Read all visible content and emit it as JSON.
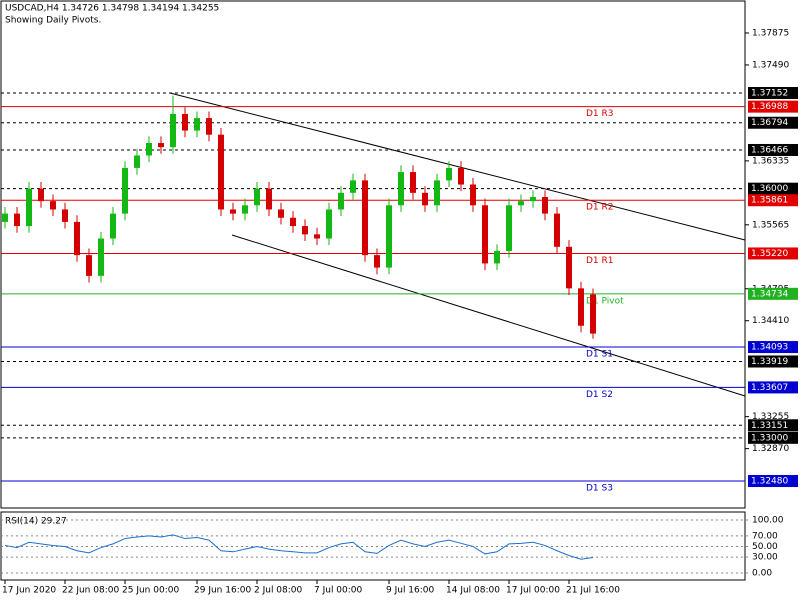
{
  "chart_data": {
    "type": "candlestick",
    "title": "USDCAD,H4  1.34726 1.34798 1.34194 1.34255",
    "subtitle": "Showing Daily Pivots.",
    "categories": [
      "17 Jun 2020",
      null,
      null,
      null,
      null,
      "22 Jun 08:00",
      null,
      null,
      null,
      null,
      "25 Jun 00:00",
      null,
      null,
      null,
      null,
      null,
      "29 Jun 16:00",
      null,
      null,
      null,
      null,
      "2 Jul 08:00",
      null,
      null,
      null,
      null,
      "7 Jul 00:00",
      null,
      null,
      null,
      null,
      null,
      "9 Jul 16:00",
      null,
      null,
      null,
      null,
      "14 Jul 08:00",
      null,
      null,
      null,
      null,
      "17 Jul 00:00",
      null,
      null,
      null,
      null,
      "21 Jul 16:00",
      null,
      null
    ],
    "open": [
      1.356,
      1.357,
      1.3555,
      1.36,
      1.3585,
      1.3575,
      1.356,
      1.352,
      1.3495,
      1.354,
      1.357,
      1.3625,
      1.364,
      1.3655,
      1.365,
      1.369,
      1.367,
      1.3685,
      1.3665,
      1.3575,
      1.357,
      1.358,
      1.36,
      1.3575,
      1.3565,
      1.3555,
      1.3545,
      1.354,
      1.3575,
      1.3595,
      1.361,
      1.352,
      1.3505,
      1.358,
      1.362,
      1.3595,
      1.358,
      1.361,
      1.3625,
      1.3605,
      1.358,
      1.351,
      1.3525,
      1.358,
      1.3585,
      1.359,
      1.357,
      1.353,
      1.348,
      1.34726
    ],
    "high": [
      1.3578,
      1.3578,
      1.3608,
      1.3608,
      1.3593,
      1.3583,
      1.3568,
      1.3528,
      1.3548,
      1.3578,
      1.3633,
      1.3648,
      1.3663,
      1.3663,
      1.3712,
      1.3698,
      1.3693,
      1.3693,
      1.3673,
      1.3583,
      1.3588,
      1.3608,
      1.3608,
      1.3583,
      1.3573,
      1.3563,
      1.3553,
      1.3583,
      1.3603,
      1.3618,
      1.3618,
      1.3528,
      1.3588,
      1.3628,
      1.3628,
      1.3603,
      1.3618,
      1.3633,
      1.3633,
      1.3613,
      1.3588,
      1.3533,
      1.3588,
      1.3593,
      1.3598,
      1.3598,
      1.3578,
      1.3538,
      1.3488,
      1.34798
    ],
    "low": [
      1.3552,
      1.3547,
      1.3547,
      1.3577,
      1.3567,
      1.3552,
      1.3512,
      1.3487,
      1.3487,
      1.3532,
      1.3562,
      1.3617,
      1.3632,
      1.3642,
      1.3642,
      1.3662,
      1.3662,
      1.3657,
      1.3567,
      1.3562,
      1.3562,
      1.3572,
      1.3567,
      1.3557,
      1.3547,
      1.3537,
      1.3532,
      1.3532,
      1.3567,
      1.3587,
      1.3512,
      1.3497,
      1.3497,
      1.3572,
      1.3587,
      1.3572,
      1.3572,
      1.3602,
      1.3597,
      1.3572,
      1.3502,
      1.3502,
      1.3517,
      1.3572,
      1.3577,
      1.3562,
      1.3522,
      1.3472,
      1.3427,
      1.34194
    ],
    "close": [
      1.357,
      1.3555,
      1.36,
      1.3585,
      1.3575,
      1.356,
      1.352,
      1.3495,
      1.354,
      1.357,
      1.3625,
      1.364,
      1.3655,
      1.365,
      1.369,
      1.367,
      1.3685,
      1.3665,
      1.3575,
      1.357,
      1.358,
      1.36,
      1.3575,
      1.3565,
      1.3555,
      1.3545,
      1.354,
      1.3575,
      1.3595,
      1.361,
      1.352,
      1.3505,
      1.358,
      1.362,
      1.3595,
      1.358,
      1.361,
      1.3625,
      1.3605,
      1.358,
      1.351,
      1.3525,
      1.358,
      1.3585,
      1.359,
      1.357,
      1.353,
      1.348,
      1.3435,
      1.34255
    ],
    "up_color": "#14b814",
    "down_color": "#d40000",
    "ylim": [
      1.32155,
      1.38272
    ],
    "yticks": [
      {
        "value": 1.37875,
        "label": "1.37875"
      },
      {
        "value": 1.3749,
        "label": "1.37490"
      },
      {
        "value": 1.36335,
        "label": "1.36335"
      },
      {
        "value": 1.35565,
        "label": "1.35565"
      },
      {
        "value": 1.34795,
        "label": "1.34795"
      },
      {
        "value": 1.3441,
        "label": "1.34410"
      },
      {
        "value": 1.33255,
        "label": "1.33255"
      },
      {
        "value": 1.3287,
        "label": "1.32870"
      }
    ],
    "levels": [
      {
        "price": {
          "value": 1.37152,
          "label": "1.37152"
        },
        "color": "#000000",
        "style": "dashed"
      },
      {
        "price": {
          "value": 1.36988,
          "label": "1.36988"
        },
        "color": "#e00000",
        "style": "solid",
        "name": "D1  R3"
      },
      {
        "price": {
          "value": 1.36794,
          "label": "1.36794"
        },
        "color": "#000000",
        "style": "dashed"
      },
      {
        "price": {
          "value": 1.36466,
          "label": "1.36466"
        },
        "color": "#000000",
        "style": "dashed"
      },
      {
        "price": {
          "value": 1.36,
          "label": "1.36000"
        },
        "color": "#000000",
        "style": "dashed"
      },
      {
        "price": {
          "value": 1.35861,
          "label": "1.35861"
        },
        "color": "#e00000",
        "style": "solid",
        "name": "D1  R2"
      },
      {
        "price": {
          "value": 1.3522,
          "label": "1.35220"
        },
        "color": "#e00000",
        "style": "solid",
        "name": "D1  R1"
      },
      {
        "price": {
          "value": 1.34734,
          "label": "1.34734"
        },
        "color": "#20b020",
        "style": "solid",
        "name": "D1  Pivot"
      },
      {
        "price": {
          "value": 1.34093,
          "label": "1.34093"
        },
        "color": "#0000d0",
        "style": "solid",
        "name": "D1  S1"
      },
      {
        "price": {
          "value": 1.33919,
          "label": "1.33919"
        },
        "color": "#000000",
        "style": "dashed"
      },
      {
        "price": {
          "value": 1.33607,
          "label": "1.33607"
        },
        "color": "#0000d0",
        "style": "solid",
        "name": "D1  S2"
      },
      {
        "price": {
          "value": 1.33151,
          "label": "1.33151"
        },
        "color": "#000000",
        "style": "dashed"
      },
      {
        "price": {
          "value": 1.33,
          "label": "1.33000"
        },
        "color": "#000000",
        "style": "dashed"
      },
      {
        "price": {
          "value": 1.3248,
          "label": "1.32480"
        },
        "color": "#0000d0",
        "style": "solid",
        "name": "D1  S3"
      }
    ],
    "rsi": {
      "title": "RSI(14) 29.27",
      "color": "#1e6fd0",
      "values": [
        52,
        48,
        58,
        55,
        52,
        50,
        42,
        38,
        48,
        55,
        65,
        68,
        70,
        68,
        72,
        65,
        67,
        62,
        42,
        40,
        45,
        50,
        45,
        42,
        40,
        38,
        38,
        48,
        55,
        58,
        40,
        37,
        52,
        62,
        55,
        50,
        58,
        62,
        56,
        50,
        36,
        40,
        55,
        56,
        58,
        52,
        42,
        33,
        26,
        29.27
      ],
      "ylim": [
        -13.2,
        115.1
      ],
      "yticks": [
        {
          "value": 100,
          "label": "100.00"
        },
        {
          "value": 70,
          "label": "70.00"
        },
        {
          "value": 50,
          "label": "50.00"
        },
        {
          "value": 30,
          "label": "30.00"
        },
        {
          "value": 0,
          "label": "0.00"
        }
      ]
    }
  }
}
